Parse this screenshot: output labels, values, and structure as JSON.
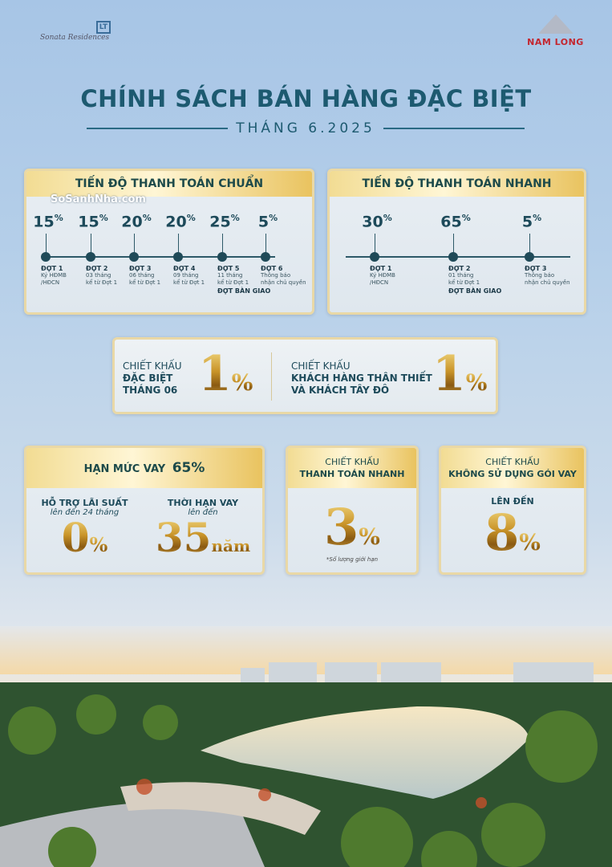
{
  "logos": {
    "left_signature": "Sonata Residences",
    "left_mark": "LT",
    "right_brand": "NAM LONG"
  },
  "watermark": "SoSanhNha.com",
  "header": {
    "title": "CHÍNH SÁCH BÁN HÀNG ĐẶC BIỆT",
    "subtitle": "THÁNG 6.2025"
  },
  "standard_plan": {
    "title": "TIẾN ĐỘ THANH TOÁN CHUẨN",
    "stages": [
      {
        "pct": "15",
        "name": "ĐỢT 1",
        "l1": "Ký HĐMB",
        "l2": "/HĐCN",
        "extra": ""
      },
      {
        "pct": "15",
        "name": "ĐỢT 2",
        "l1": "03 tháng",
        "l2": "kể từ Đợt 1",
        "extra": ""
      },
      {
        "pct": "20",
        "name": "ĐỢT 3",
        "l1": "06 tháng",
        "l2": "kể từ Đợt 1",
        "extra": ""
      },
      {
        "pct": "20",
        "name": "ĐỢT 4",
        "l1": "09 tháng",
        "l2": "kể từ Đợt 1",
        "extra": ""
      },
      {
        "pct": "25",
        "name": "ĐỢT 5",
        "l1": "11 tháng",
        "l2": "kể từ Đợt 1",
        "extra": "ĐỢT BÀN GIAO"
      },
      {
        "pct": "5",
        "name": "ĐỢT 6",
        "l1": "Thông báo",
        "l2": "nhận chủ quyền",
        "extra": ""
      }
    ]
  },
  "fast_plan": {
    "title": "TIẾN ĐỘ THANH TOÁN NHANH",
    "stages": [
      {
        "pct": "30",
        "name": "ĐỢT 1",
        "l1": "Ký HĐMB",
        "l2": "/HĐCN",
        "extra": ""
      },
      {
        "pct": "65",
        "name": "ĐỢT 2",
        "l1": "01 tháng",
        "l2": "kể từ Đợt 1",
        "extra": "ĐỢT BÀN GIAO"
      },
      {
        "pct": "5",
        "name": "ĐỢT 3",
        "l1": "Thông báo",
        "l2": "nhận chủ quyền",
        "extra": ""
      }
    ]
  },
  "pct_sign": "%",
  "discounts": {
    "special": {
      "l1": "CHIẾT KHẤU",
      "l2": "ĐẶC BIỆT",
      "l3": "THÁNG 06",
      "value": "1"
    },
    "loyal": {
      "l1": "CHIẾT KHẤU",
      "l2": "KHÁCH HÀNG THÂN THIẾT",
      "l3": "VÀ KHÁCH TÂY ĐÔ",
      "value": "1"
    }
  },
  "loan": {
    "title": "HẠN MỨC VAY",
    "title_value": "65%",
    "interest": {
      "label": "HỖ TRỢ LÃI SUẤT",
      "sub": "lên đến 24 tháng",
      "value": "0"
    },
    "term": {
      "label": "THỜI HẠN VAY",
      "sub": "lên đến",
      "value": "35",
      "unit": "năm"
    }
  },
  "fast_pay": {
    "l1": "CHIẾT KHẤU",
    "l2": "THANH TOÁN NHANH",
    "value": "3",
    "note": "*Số lượng giới hạn"
  },
  "no_loan": {
    "l1": "CHIẾT KHẤU",
    "l2": "KHÔNG SỬ DỤNG GÓI VAY",
    "sub": "LÊN ĐẾN",
    "value": "8"
  },
  "colors": {
    "primary": "#1d5a70",
    "gold": "#c99429",
    "brand_red": "#c4262e"
  }
}
